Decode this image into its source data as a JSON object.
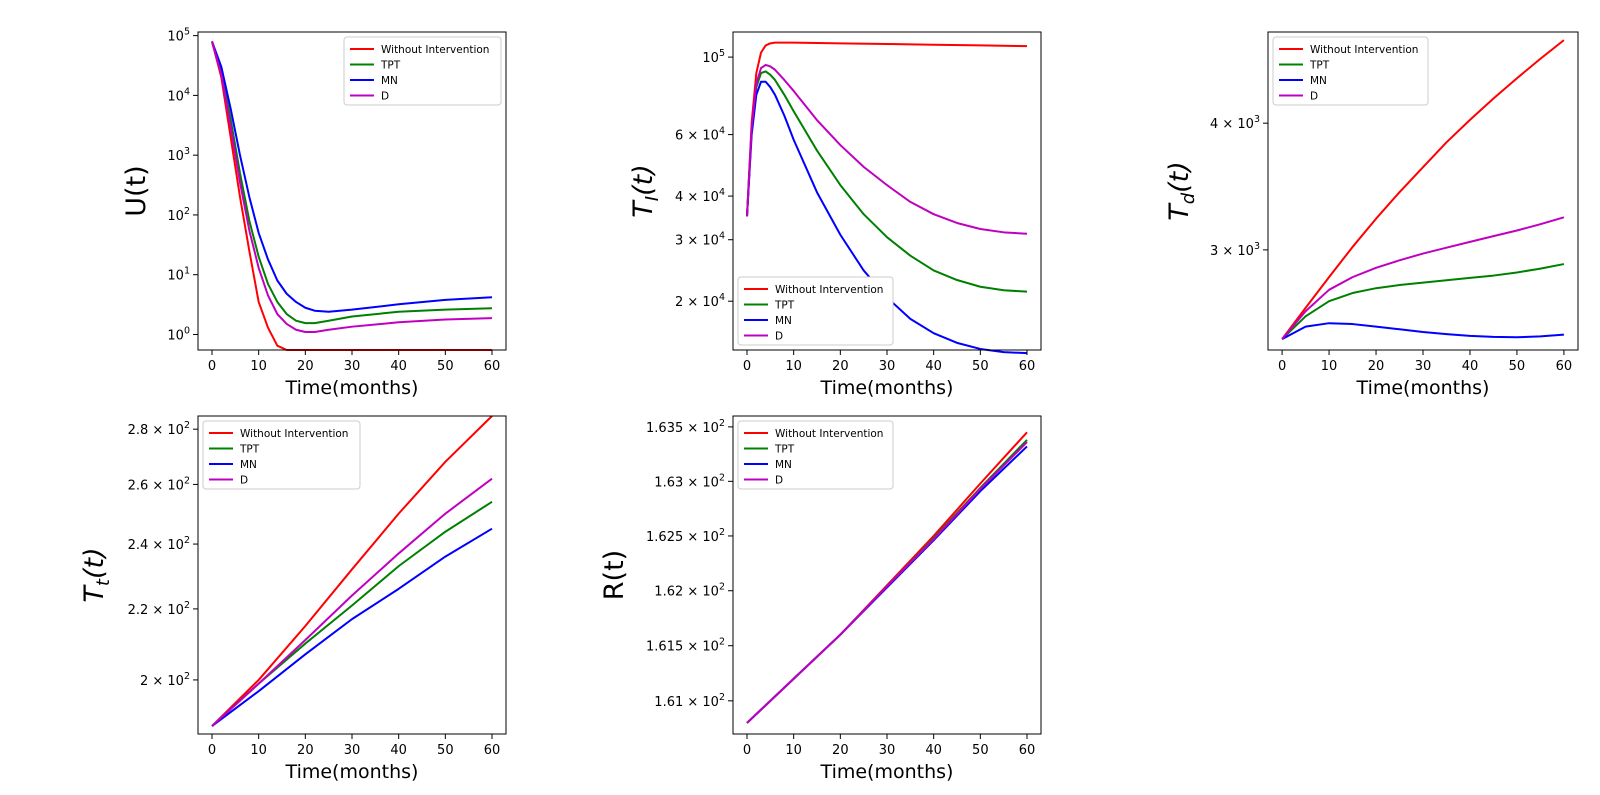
{
  "colors": {
    "Without Intervention": "#ff0000",
    "TPT": "#008000",
    "MN": "#0000ff",
    "D": "#c000c0"
  },
  "chart_data": [
    {
      "type": "line",
      "id": "U",
      "ylabel": "U(t)",
      "ylabel_italic": false,
      "xlabel": "Time(months)",
      "xlim": [
        -3,
        63
      ],
      "xticks": [
        0,
        10,
        20,
        30,
        40,
        50,
        60
      ],
      "yscale": "log",
      "ylim": [
        0.55,
        115000
      ],
      "yticks": [
        {
          "value": 100000,
          "base": "10",
          "exp": "5"
        },
        {
          "value": 10000,
          "base": "10",
          "exp": "4"
        },
        {
          "value": 1000,
          "base": "10",
          "exp": "3"
        },
        {
          "value": 100,
          "base": "10",
          "exp": "2"
        },
        {
          "value": 10,
          "base": "10",
          "exp": "1"
        },
        {
          "value": 1,
          "base": "10",
          "exp": "0"
        }
      ],
      "legend_loc": "upper right",
      "series": [
        {
          "name": "Without Intervention",
          "x": [
            0,
            2,
            4,
            6,
            8,
            10,
            12,
            14,
            16,
            20,
            30,
            40,
            50,
            60
          ],
          "y": [
            80000,
            20000,
            2000,
            200,
            25,
            3.5,
            1.3,
            0.65,
            0.55,
            0.55,
            0.55,
            0.55,
            0.55,
            0.55
          ]
        },
        {
          "name": "TPT",
          "x": [
            0,
            2,
            4,
            6,
            8,
            10,
            12,
            14,
            16,
            18,
            20,
            22,
            25,
            30,
            40,
            50,
            60
          ],
          "y": [
            80000,
            25000,
            4000,
            500,
            80,
            20,
            7,
            3.5,
            2.2,
            1.7,
            1.55,
            1.55,
            1.7,
            2.0,
            2.4,
            2.6,
            2.75
          ]
        },
        {
          "name": "MN",
          "x": [
            0,
            2,
            4,
            6,
            8,
            10,
            12,
            14,
            16,
            18,
            20,
            22,
            25,
            30,
            40,
            50,
            60
          ],
          "y": [
            80000,
            30000,
            6000,
            1000,
            200,
            50,
            18,
            8,
            4.8,
            3.5,
            2.8,
            2.5,
            2.4,
            2.6,
            3.2,
            3.8,
            4.2
          ]
        },
        {
          "name": "D",
          "x": [
            0,
            2,
            4,
            6,
            8,
            10,
            12,
            14,
            16,
            18,
            20,
            22,
            25,
            30,
            40,
            50,
            60
          ],
          "y": [
            80000,
            22000,
            3000,
            350,
            55,
            13,
            4.5,
            2.2,
            1.5,
            1.2,
            1.1,
            1.1,
            1.2,
            1.35,
            1.6,
            1.78,
            1.88
          ]
        }
      ]
    },
    {
      "type": "line",
      "id": "TI",
      "ylabel": "T",
      "ylabel_sub": "I",
      "ylabel_tail": "(t)",
      "ylabel_italic": true,
      "xlabel": "Time(months)",
      "xlim": [
        -3,
        63
      ],
      "xticks": [
        0,
        10,
        20,
        30,
        40,
        50,
        60
      ],
      "yscale": "log",
      "ylim": [
        14500,
        118000
      ],
      "yticks": [
        {
          "value": 100000,
          "base": "10",
          "exp": "5"
        },
        {
          "value": 60000,
          "base": "6 × 10",
          "exp": "4"
        },
        {
          "value": 40000,
          "base": "4 × 10",
          "exp": "4"
        },
        {
          "value": 30000,
          "base": "3 × 10",
          "exp": "4"
        },
        {
          "value": 20000,
          "base": "2 × 10",
          "exp": "4"
        }
      ],
      "legend_loc": "lower left",
      "series": [
        {
          "name": "Without Intervention",
          "x": [
            0,
            1,
            2,
            3,
            4,
            5,
            6,
            8,
            10,
            20,
            30,
            40,
            50,
            60
          ],
          "y": [
            35000,
            65000,
            90000,
            103000,
            108000,
            109500,
            110000,
            110000,
            110000,
            109500,
            109000,
            108500,
            108000,
            107500
          ]
        },
        {
          "name": "TPT",
          "x": [
            0,
            1,
            2,
            3,
            4,
            5,
            6,
            8,
            10,
            15,
            20,
            25,
            30,
            35,
            40,
            45,
            50,
            55,
            60
          ],
          "y": [
            35000,
            62000,
            82000,
            90000,
            91000,
            89000,
            86000,
            78000,
            70000,
            54000,
            43000,
            35500,
            30500,
            27000,
            24500,
            23000,
            22000,
            21500,
            21300
          ]
        },
        {
          "name": "MN",
          "x": [
            0,
            1,
            2,
            3,
            4,
            5,
            6,
            8,
            10,
            15,
            20,
            25,
            30,
            35,
            40,
            45,
            50,
            55,
            60
          ],
          "y": [
            35000,
            60000,
            78000,
            85000,
            85000,
            82000,
            78000,
            68000,
            58000,
            41000,
            31000,
            24500,
            20500,
            17800,
            16200,
            15200,
            14600,
            14300,
            14200
          ]
        },
        {
          "name": "D",
          "x": [
            0,
            1,
            2,
            3,
            4,
            5,
            6,
            8,
            10,
            15,
            20,
            25,
            30,
            35,
            40,
            45,
            50,
            55,
            60
          ],
          "y": [
            35000,
            63000,
            84000,
            93000,
            95000,
            94000,
            92000,
            86000,
            80000,
            66000,
            56000,
            48500,
            43000,
            38500,
            35500,
            33500,
            32200,
            31500,
            31200
          ]
        }
      ]
    },
    {
      "type": "line",
      "id": "Td",
      "ylabel": "T",
      "ylabel_sub": "d",
      "ylabel_tail": "(t)",
      "ylabel_italic": true,
      "xlabel": "Time(months)",
      "xlim": [
        -3,
        63
      ],
      "xticks": [
        0,
        10,
        20,
        30,
        40,
        50,
        60
      ],
      "yscale": "log",
      "ylim": [
        2390,
        4920
      ],
      "yticks": [
        {
          "value": 4000,
          "base": "4 × 10",
          "exp": "3"
        },
        {
          "value": 3000,
          "base": "3 × 10",
          "exp": "3"
        }
      ],
      "legend_loc": "upper left",
      "series": [
        {
          "name": "Without Intervention",
          "x": [
            0,
            5,
            10,
            15,
            20,
            25,
            30,
            35,
            40,
            45,
            50,
            55,
            60
          ],
          "y": [
            2450,
            2630,
            2820,
            3020,
            3220,
            3420,
            3620,
            3830,
            4030,
            4230,
            4430,
            4630,
            4830
          ]
        },
        {
          "name": "TPT",
          "x": [
            0,
            5,
            10,
            15,
            20,
            25,
            30,
            35,
            40,
            45,
            50,
            55,
            60
          ],
          "y": [
            2450,
            2580,
            2670,
            2720,
            2750,
            2770,
            2785,
            2800,
            2815,
            2830,
            2850,
            2875,
            2905
          ]
        },
        {
          "name": "MN",
          "x": [
            0,
            5,
            10,
            15,
            20,
            25,
            30,
            35,
            40,
            45,
            50,
            55,
            60
          ],
          "y": [
            2450,
            2520,
            2540,
            2535,
            2520,
            2505,
            2490,
            2478,
            2468,
            2462,
            2460,
            2465,
            2475
          ]
        },
        {
          "name": "D",
          "x": [
            0,
            5,
            10,
            15,
            20,
            25,
            30,
            35,
            40,
            45,
            50,
            55,
            60
          ],
          "y": [
            2450,
            2610,
            2740,
            2820,
            2880,
            2930,
            2975,
            3015,
            3055,
            3095,
            3135,
            3180,
            3230
          ]
        }
      ]
    },
    {
      "type": "line",
      "id": "Tt",
      "ylabel": "T",
      "ylabel_sub": "t",
      "ylabel_tail": "(t)",
      "ylabel_italic": true,
      "xlabel": "Time(months)",
      "xlim": [
        -3,
        63
      ],
      "xticks": [
        0,
        10,
        20,
        30,
        40,
        50,
        60
      ],
      "yscale": "log",
      "ylim": [
        186,
        285
      ],
      "yticks": [
        {
          "value": 280,
          "base": "2.8 × 10",
          "exp": "2"
        },
        {
          "value": 260,
          "base": "2.6 × 10",
          "exp": "2"
        },
        {
          "value": 240,
          "base": "2.4 × 10",
          "exp": "2"
        },
        {
          "value": 220,
          "base": "2.2 × 10",
          "exp": "2"
        },
        {
          "value": 200,
          "base": "2 × 10",
          "exp": "2"
        }
      ],
      "legend_loc": "upper left",
      "series": [
        {
          "name": "Without Intervention",
          "x": [
            0,
            10,
            20,
            30,
            40,
            50,
            60
          ],
          "y": [
            188,
            200,
            215,
            232,
            250,
            268,
            285
          ]
        },
        {
          "name": "TPT",
          "x": [
            0,
            10,
            20,
            30,
            40,
            50,
            60
          ],
          "y": [
            188,
            199,
            210,
            221,
            233,
            244,
            254
          ]
        },
        {
          "name": "MN",
          "x": [
            0,
            10,
            20,
            30,
            40,
            50,
            60
          ],
          "y": [
            188,
            197,
            207,
            217,
            226,
            236,
            245
          ]
        },
        {
          "name": "D",
          "x": [
            0,
            10,
            20,
            30,
            40,
            50,
            60
          ],
          "y": [
            188,
            199,
            211,
            224,
            237,
            250,
            262
          ]
        }
      ]
    },
    {
      "type": "line",
      "id": "R",
      "ylabel": "R(t)",
      "ylabel_italic": false,
      "xlabel": "Time(months)",
      "xlim": [
        -3,
        63
      ],
      "xticks": [
        0,
        10,
        20,
        30,
        40,
        50,
        60
      ],
      "yscale": "log",
      "ylim": [
        160.7,
        163.6
      ],
      "yticks": [
        {
          "value": 163.5,
          "base": "1.635 × 10",
          "exp": "2"
        },
        {
          "value": 163.0,
          "base": "1.63 × 10",
          "exp": "2"
        },
        {
          "value": 162.5,
          "base": "1.625 × 10",
          "exp": "2"
        },
        {
          "value": 162.0,
          "base": "1.62 × 10",
          "exp": "2"
        },
        {
          "value": 161.5,
          "base": "1.615 × 10",
          "exp": "2"
        },
        {
          "value": 161.0,
          "base": "1.61 × 10",
          "exp": "2"
        }
      ],
      "legend_loc": "upper left",
      "series": [
        {
          "name": "Without Intervention",
          "x": [
            0,
            10,
            20,
            30,
            40,
            50,
            60
          ],
          "y": [
            160.8,
            161.2,
            161.6,
            162.05,
            162.5,
            162.98,
            163.45
          ]
        },
        {
          "name": "TPT",
          "x": [
            0,
            10,
            20,
            30,
            40,
            50,
            60
          ],
          "y": [
            160.8,
            161.2,
            161.6,
            162.04,
            162.48,
            162.94,
            163.38
          ]
        },
        {
          "name": "MN",
          "x": [
            0,
            10,
            20,
            30,
            40,
            50,
            60
          ],
          "y": [
            160.8,
            161.2,
            161.6,
            162.03,
            162.46,
            162.91,
            163.32
          ]
        },
        {
          "name": "D",
          "x": [
            0,
            10,
            20,
            30,
            40,
            50,
            60
          ],
          "y": [
            160.8,
            161.2,
            161.6,
            162.04,
            162.47,
            162.93,
            163.36
          ]
        }
      ]
    }
  ]
}
